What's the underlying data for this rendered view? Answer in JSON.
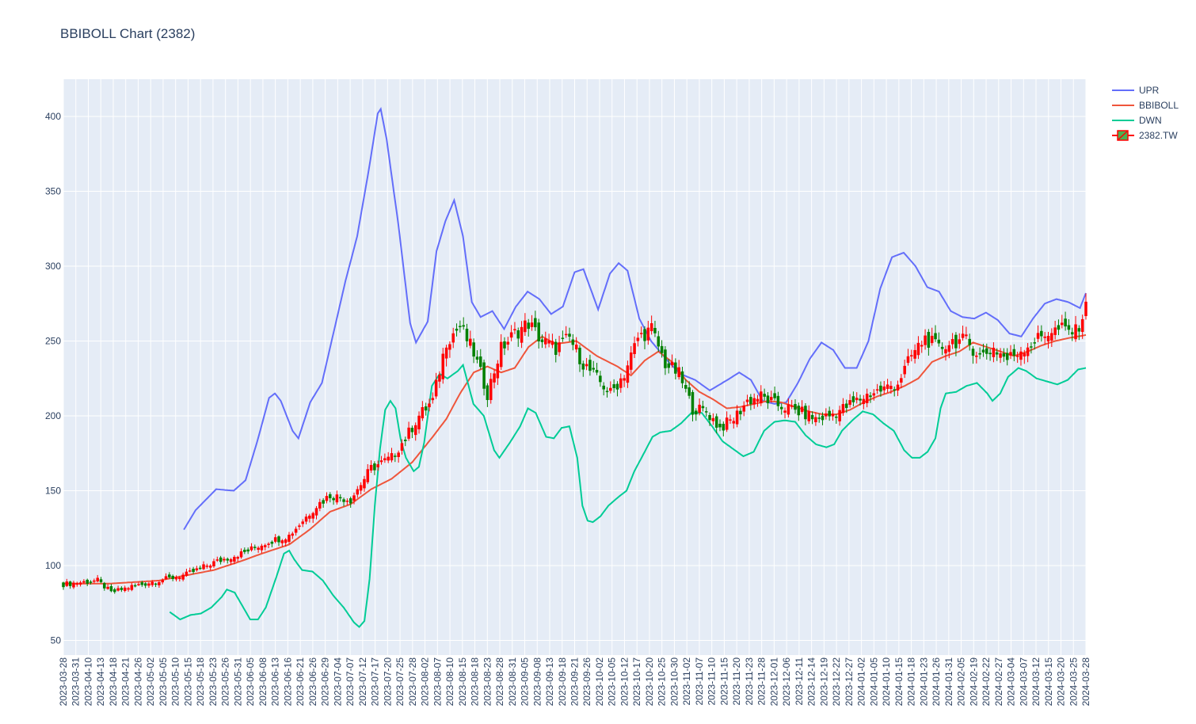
{
  "chart_data": {
    "type": "candlestick",
    "title": "BBIBOLL Chart (2382)",
    "ylim": [
      40,
      420
    ],
    "y_ticks": [
      50,
      100,
      150,
      200,
      250,
      300,
      350,
      400
    ],
    "x_ticks": [
      "2023-03-28",
      "2023-03-31",
      "2023-04-10",
      "2023-04-13",
      "2023-04-18",
      "2023-04-21",
      "2023-04-26",
      "2023-05-02",
      "2023-05-05",
      "2023-05-10",
      "2023-05-15",
      "2023-05-18",
      "2023-05-23",
      "2023-05-26",
      "2023-05-31",
      "2023-06-05",
      "2023-06-08",
      "2023-06-13",
      "2023-06-16",
      "2023-06-21",
      "2023-06-26",
      "2023-06-29",
      "2023-07-04",
      "2023-07-07",
      "2023-07-12",
      "2023-07-17",
      "2023-07-20",
      "2023-07-25",
      "2023-07-28",
      "2023-08-02",
      "2023-08-07",
      "2023-08-10",
      "2023-08-15",
      "2023-08-18",
      "2023-08-23",
      "2023-08-28",
      "2023-08-31",
      "2023-09-05",
      "2023-09-08",
      "2023-09-13",
      "2023-09-18",
      "2023-09-21",
      "2023-09-26",
      "2023-10-02",
      "2023-10-05",
      "2023-10-12",
      "2023-10-17",
      "2023-10-20",
      "2023-10-25",
      "2023-10-30",
      "2023-11-02",
      "2023-11-07",
      "2023-11-10",
      "2023-11-15",
      "2023-11-20",
      "2023-11-23",
      "2023-11-28",
      "2023-12-01",
      "2023-12-06",
      "2023-12-11",
      "2023-12-14",
      "2023-12-19",
      "2023-12-22",
      "2023-12-27",
      "2024-01-02",
      "2024-01-05",
      "2024-01-10",
      "2024-01-15",
      "2024-01-18",
      "2024-01-23",
      "2024-01-26",
      "2024-01-31",
      "2024-02-05",
      "2024-02-19",
      "2024-02-22",
      "2024-02-27",
      "2024-03-04",
      "2024-03-07",
      "2024-03-12",
      "2024-03-15",
      "2024-03-20",
      "2024-03-25",
      "2024-03-28"
    ],
    "legend": [
      {
        "name": "UPR",
        "color": "#636efa",
        "kind": "line"
      },
      {
        "name": "BBIBOLL",
        "color": "#ef553b",
        "kind": "line"
      },
      {
        "name": "DWN",
        "color": "#00cc96",
        "kind": "line"
      },
      {
        "name": "2382.TW",
        "color": "#ff0000",
        "kind": "candle"
      }
    ],
    "legend_position": "top-right",
    "increasing_color": "#ff0000",
    "decreasing_color": "#008000",
    "close_anchors": [
      [
        0,
        87.5
      ],
      [
        10,
        90
      ],
      [
        14,
        82
      ],
      [
        20,
        86
      ],
      [
        28,
        90
      ],
      [
        36,
        94
      ],
      [
        44,
        102
      ],
      [
        52,
        108
      ],
      [
        60,
        116
      ],
      [
        66,
        120
      ],
      [
        74,
        140
      ],
      [
        78,
        147
      ],
      [
        84,
        144
      ],
      [
        90,
        165
      ],
      [
        96,
        172
      ],
      [
        100,
        185
      ],
      [
        104,
        200
      ],
      [
        108,
        210
      ],
      [
        112,
        250
      ],
      [
        116,
        260
      ],
      [
        120,
        242
      ],
      [
        124,
        215
      ],
      [
        128,
        245
      ],
      [
        132,
        255
      ],
      [
        136,
        262
      ],
      [
        140,
        250
      ],
      [
        144,
        245
      ],
      [
        148,
        252
      ],
      [
        152,
        235
      ],
      [
        156,
        225
      ],
      [
        160,
        215
      ],
      [
        164,
        228
      ],
      [
        168,
        252
      ],
      [
        172,
        258
      ],
      [
        176,
        235
      ],
      [
        180,
        228
      ],
      [
        184,
        205
      ],
      [
        188,
        203
      ],
      [
        192,
        192
      ],
      [
        196,
        198
      ],
      [
        200,
        210
      ],
      [
        204,
        213
      ],
      [
        208,
        208
      ],
      [
        212,
        205
      ],
      [
        216,
        202
      ],
      [
        220,
        198
      ],
      [
        224,
        200
      ],
      [
        228,
        205
      ],
      [
        232,
        210
      ],
      [
        236,
        215
      ],
      [
        240,
        218
      ],
      [
        244,
        222
      ],
      [
        248,
        240
      ],
      [
        252,
        252
      ],
      [
        256,
        245
      ],
      [
        260,
        250
      ],
      [
        264,
        250
      ],
      [
        268,
        240
      ],
      [
        272,
        245
      ],
      [
        276,
        238
      ],
      [
        280,
        244
      ],
      [
        284,
        250
      ],
      [
        288,
        256
      ],
      [
        292,
        258
      ],
      [
        296,
        256
      ],
      [
        299,
        272
      ]
    ],
    "bbiboll": [
      [
        0,
        88
      ],
      [
        14,
        88
      ],
      [
        28,
        90
      ],
      [
        44,
        97
      ],
      [
        52,
        103
      ],
      [
        58,
        108
      ],
      [
        66,
        114
      ],
      [
        72,
        124
      ],
      [
        78,
        136
      ],
      [
        84,
        141
      ],
      [
        90,
        151
      ],
      [
        96,
        158
      ],
      [
        102,
        169
      ],
      [
        108,
        186
      ],
      [
        112,
        198
      ],
      [
        116,
        215
      ],
      [
        120,
        229
      ],
      [
        124,
        233
      ],
      [
        128,
        229
      ],
      [
        132,
        232
      ],
      [
        136,
        246
      ],
      [
        140,
        253
      ],
      [
        144,
        248
      ],
      [
        150,
        250
      ],
      [
        156,
        240
      ],
      [
        162,
        233
      ],
      [
        166,
        227
      ],
      [
        170,
        237
      ],
      [
        174,
        243
      ],
      [
        178,
        236
      ],
      [
        182,
        224
      ],
      [
        186,
        216
      ],
      [
        190,
        211
      ],
      [
        194,
        205
      ],
      [
        198,
        206
      ],
      [
        202,
        208
      ],
      [
        206,
        210
      ],
      [
        210,
        209
      ],
      [
        214,
        206
      ],
      [
        218,
        203
      ],
      [
        222,
        201
      ],
      [
        226,
        201
      ],
      [
        230,
        204
      ],
      [
        234,
        209
      ],
      [
        238,
        213
      ],
      [
        242,
        216
      ],
      [
        246,
        220
      ],
      [
        250,
        225
      ],
      [
        254,
        236
      ],
      [
        258,
        240
      ],
      [
        262,
        243
      ],
      [
        266,
        249
      ],
      [
        270,
        246
      ],
      [
        274,
        243
      ],
      [
        278,
        240
      ],
      [
        282,
        243
      ],
      [
        286,
        247
      ],
      [
        290,
        250
      ],
      [
        294,
        252
      ],
      [
        299,
        254
      ]
    ],
    "upr": [
      [
        41,
        124
      ],
      [
        45,
        137
      ],
      [
        49,
        145
      ],
      [
        52,
        151
      ],
      [
        58,
        150
      ],
      [
        62,
        157
      ],
      [
        66,
        183
      ],
      [
        70,
        212
      ],
      [
        72,
        215
      ],
      [
        74,
        210
      ],
      [
        78,
        190
      ],
      [
        80,
        185
      ],
      [
        84,
        209
      ],
      [
        88,
        222
      ],
      [
        92,
        256
      ],
      [
        96,
        290
      ],
      [
        100,
        320
      ],
      [
        104,
        365
      ],
      [
        107,
        402
      ],
      [
        108,
        405
      ],
      [
        110,
        385
      ],
      [
        114,
        328
      ],
      [
        118,
        262
      ],
      [
        120,
        249
      ],
      [
        124,
        263
      ],
      [
        127,
        310
      ],
      [
        130,
        330
      ],
      [
        133,
        344
      ],
      [
        136,
        320
      ],
      [
        139,
        276
      ],
      [
        142,
        266
      ],
      [
        146,
        270
      ],
      [
        150,
        258
      ],
      [
        154,
        273
      ],
      [
        158,
        283
      ],
      [
        162,
        278
      ],
      [
        166,
        268
      ],
      [
        170,
        273
      ],
      [
        174,
        296
      ],
      [
        177,
        298
      ],
      [
        182,
        271
      ],
      [
        186,
        295
      ],
      [
        189,
        302
      ],
      [
        192,
        297
      ],
      [
        196,
        265
      ],
      [
        200,
        250
      ],
      [
        206,
        236
      ],
      [
        210,
        228
      ],
      [
        215,
        224
      ],
      [
        220,
        217
      ],
      [
        226,
        224
      ],
      [
        230,
        229
      ],
      [
        234,
        224
      ],
      [
        238,
        210
      ],
      [
        242,
        208
      ],
      [
        246,
        209
      ],
      [
        250,
        222
      ],
      [
        254,
        238
      ],
      [
        258,
        249
      ],
      [
        262,
        244
      ],
      [
        266,
        232
      ],
      [
        270,
        232
      ],
      [
        274,
        250
      ],
      [
        278,
        285
      ],
      [
        282,
        306
      ],
      [
        286,
        309
      ],
      [
        290,
        300
      ],
      [
        294,
        286
      ],
      [
        298,
        283
      ],
      [
        302,
        270
      ],
      [
        306,
        266
      ],
      [
        310,
        265
      ],
      [
        314,
        269
      ],
      [
        318,
        264
      ],
      [
        322,
        255
      ],
      [
        326,
        253
      ],
      [
        330,
        265
      ],
      [
        334,
        275
      ],
      [
        338,
        278
      ],
      [
        342,
        276
      ],
      [
        346,
        272
      ],
      [
        348,
        282
      ]
    ],
    "dwn": [
      [
        41,
        69
      ],
      [
        45,
        64
      ],
      [
        49,
        67
      ],
      [
        53,
        68
      ],
      [
        57,
        72
      ],
      [
        61,
        79
      ],
      [
        63,
        84
      ],
      [
        66,
        82
      ],
      [
        70,
        70
      ],
      [
        72,
        64
      ],
      [
        75,
        64
      ],
      [
        78,
        72
      ],
      [
        82,
        92
      ],
      [
        85,
        108
      ],
      [
        87,
        110
      ],
      [
        89,
        104
      ],
      [
        92,
        97
      ],
      [
        96,
        96
      ],
      [
        100,
        90
      ],
      [
        104,
        80
      ],
      [
        108,
        72
      ],
      [
        112,
        62
      ],
      [
        114,
        59
      ],
      [
        116,
        63
      ],
      [
        118,
        91
      ],
      [
        120,
        140
      ],
      [
        122,
        178
      ],
      [
        124,
        204
      ],
      [
        126,
        210
      ],
      [
        128,
        205
      ],
      [
        130,
        184
      ],
      [
        132,
        172
      ],
      [
        135,
        163
      ],
      [
        137,
        166
      ],
      [
        139,
        182
      ],
      [
        142,
        220
      ],
      [
        145,
        228
      ],
      [
        148,
        225
      ],
      [
        152,
        230
      ],
      [
        154,
        234
      ],
      [
        156,
        221
      ],
      [
        158,
        208
      ],
      [
        162,
        200
      ],
      [
        166,
        177
      ],
      [
        168,
        172
      ],
      [
        172,
        182
      ],
      [
        176,
        193
      ],
      [
        179,
        205
      ],
      [
        182,
        202
      ],
      [
        186,
        186
      ],
      [
        189,
        185
      ],
      [
        192,
        192
      ],
      [
        195,
        193
      ],
      [
        198,
        172
      ],
      [
        200,
        140
      ],
      [
        202,
        130
      ],
      [
        204,
        129
      ],
      [
        207,
        133
      ],
      [
        210,
        140
      ],
      [
        214,
        146
      ],
      [
        217,
        150
      ],
      [
        220,
        163
      ],
      [
        224,
        176
      ],
      [
        227,
        186
      ],
      [
        230,
        189
      ],
      [
        234,
        190
      ],
      [
        238,
        195
      ],
      [
        242,
        202
      ],
      [
        246,
        202
      ],
      [
        250,
        193
      ],
      [
        254,
        183
      ],
      [
        258,
        178
      ],
      [
        262,
        173
      ],
      [
        266,
        176
      ],
      [
        270,
        190
      ],
      [
        274,
        196
      ],
      [
        278,
        197
      ],
      [
        282,
        196
      ],
      [
        286,
        187
      ],
      [
        290,
        181
      ],
      [
        294,
        179
      ],
      [
        297,
        181
      ],
      [
        300,
        190
      ],
      [
        304,
        197
      ],
      [
        308,
        203
      ],
      [
        312,
        201
      ],
      [
        316,
        195
      ],
      [
        320,
        190
      ],
      [
        324,
        177
      ],
      [
        327,
        172
      ],
      [
        330,
        172
      ],
      [
        333,
        176
      ],
      [
        336,
        185
      ],
      [
        338,
        205
      ],
      [
        340,
        215
      ],
      [
        344,
        216
      ],
      [
        348,
        220
      ],
      [
        352,
        222
      ],
      [
        356,
        215
      ],
      [
        358,
        210
      ],
      [
        361,
        215
      ],
      [
        364,
        226
      ],
      [
        368,
        232
      ],
      [
        371,
        230
      ],
      [
        375,
        225
      ],
      [
        379,
        223
      ],
      [
        383,
        221
      ],
      [
        387,
        224
      ],
      [
        391,
        231
      ],
      [
        394,
        232
      ]
    ]
  }
}
